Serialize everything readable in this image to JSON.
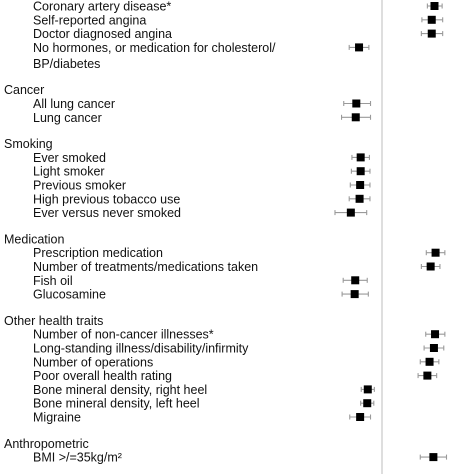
{
  "chart_data": {
    "type": "scatter",
    "subtype": "forest-plot",
    "reference_line": 1.0,
    "xlim": [
      0.85,
      1.15
    ],
    "colors": {
      "point": "#000000",
      "ci": "#9a9a9a",
      "reference": "#bdbdbd",
      "text": "#111111"
    },
    "groups": [
      {
        "name": "",
        "rows": [
          {
            "label": "Coronary artery disease*",
            "est": 1.096,
            "lo": 1.083,
            "hi": 1.11
          },
          {
            "label": "Self-reported angina",
            "est": 1.091,
            "lo": 1.073,
            "hi": 1.111
          },
          {
            "label": "Doctor diagnosed angina",
            "est": 1.091,
            "lo": 1.072,
            "hi": 1.111
          },
          {
            "label": "No hormones, or medication for cholesterol/",
            "label_cont": "BP/diabetes",
            "est": 0.958,
            "lo": 0.94,
            "hi": 0.976
          }
        ]
      },
      {
        "name": "Cancer",
        "rows": [
          {
            "label": "All lung cancer",
            "est": 0.953,
            "lo": 0.93,
            "hi": 0.979
          },
          {
            "label": "Lung cancer",
            "est": 0.952,
            "lo": 0.926,
            "hi": 0.979
          }
        ]
      },
      {
        "name": "Smoking",
        "rows": [
          {
            "label": "Ever smoked",
            "est": 0.961,
            "lo": 0.945,
            "hi": 0.977
          },
          {
            "label": "Light smoker",
            "est": 0.961,
            "lo": 0.944,
            "hi": 0.978
          },
          {
            "label": "Previous smoker",
            "est": 0.96,
            "lo": 0.942,
            "hi": 0.978
          },
          {
            "label": "High previous tobacco use",
            "est": 0.959,
            "lo": 0.94,
            "hi": 0.978
          },
          {
            "label": "Ever versus never smoked",
            "est": 0.943,
            "lo": 0.914,
            "hi": 0.972
          }
        ]
      },
      {
        "name": "Medication",
        "rows": [
          {
            "label": "Prescription medication",
            "est": 1.098,
            "lo": 1.081,
            "hi": 1.115
          },
          {
            "label": "Number of treatments/medications taken",
            "est": 1.089,
            "lo": 1.072,
            "hi": 1.106
          },
          {
            "label": "Fish oil",
            "est": 0.951,
            "lo": 0.929,
            "hi": 0.973
          },
          {
            "label": "Glucosamine",
            "est": 0.95,
            "lo": 0.927,
            "hi": 0.975
          }
        ]
      },
      {
        "name": "Other health traits",
        "rows": [
          {
            "label": "Number of non-cancer illnesses*",
            "est": 1.097,
            "lo": 1.08,
            "hi": 1.115
          },
          {
            "label": "Long-standing illness/disability/infirmity",
            "est": 1.095,
            "lo": 1.077,
            "hi": 1.113
          },
          {
            "label": "Number of operations",
            "est": 1.087,
            "lo": 1.07,
            "hi": 1.104
          },
          {
            "label": "Poor overall health rating",
            "est": 1.083,
            "lo": 1.066,
            "hi": 1.1
          },
          {
            "label": "Bone mineral density, right heel",
            "est": 0.974,
            "lo": 0.962,
            "hi": 0.986
          },
          {
            "label": "Bone mineral density, left heel",
            "est": 0.973,
            "lo": 0.961,
            "hi": 0.985
          },
          {
            "label": "Migraine",
            "est": 0.96,
            "lo": 0.941,
            "hi": 0.979
          }
        ]
      },
      {
        "name": "Anthropometric",
        "rows": [
          {
            "label": "BMI >/=35kg/m²",
            "est": 1.094,
            "lo": 1.07,
            "hi": 1.118
          }
        ]
      }
    ]
  }
}
